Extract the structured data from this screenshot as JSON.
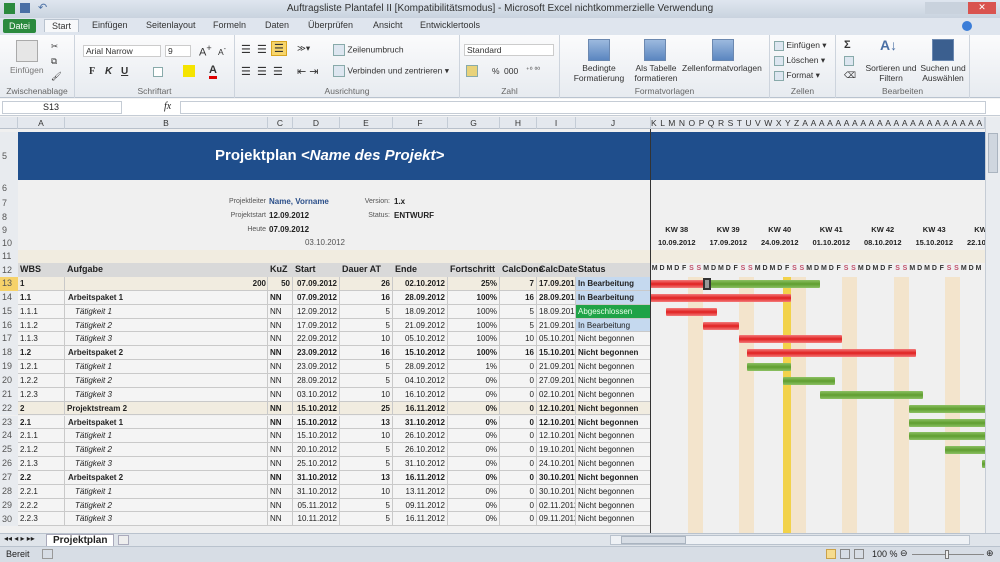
{
  "window": {
    "title": "Auftragsliste Plantafel II  [Kompatibilitätsmodus]  -  Microsoft Excel nichtkommerzielle Verwendung"
  },
  "tabs": [
    "Datei",
    "Start",
    "Einfügen",
    "Seitenlayout",
    "Formeln",
    "Daten",
    "Überprüfen",
    "Ansicht",
    "Entwicklertools"
  ],
  "ribbon": {
    "clipboard": {
      "paste": "Einfügen",
      "label": "Zwischenablage"
    },
    "font": {
      "name": "Arial Narrow",
      "size": "9",
      "bold": "F",
      "italic": "K",
      "underline": "U",
      "label": "Schriftart"
    },
    "alignment": {
      "wrap": "Zeilenumbruch",
      "merge": "Verbinden und zentrieren",
      "label": "Ausrichtung"
    },
    "number": {
      "format": "Standard",
      "percent": "%",
      "thousands": "000",
      "label": "Zahl"
    },
    "styles": {
      "conditional": "Bedingte Formatierung",
      "table": "Als Tabelle formatieren",
      "cellstyles": "Zellenformatvorlagen",
      "label": "Formatvorlagen"
    },
    "cells": {
      "insert": "Einfügen",
      "delete": "Löschen",
      "format": "Format",
      "label": "Zellen"
    },
    "editing": {
      "sum": "Σ",
      "sort": "Sortieren und Filtern",
      "find": "Suchen und Auswählen",
      "label": "Bearbeiten"
    }
  },
  "formula_bar": {
    "name_box": "S13",
    "fx": "fx",
    "value": ""
  },
  "columns": [
    "A",
    "B",
    "C",
    "D",
    "E",
    "F",
    "G",
    "H",
    "I",
    "J"
  ],
  "gantt_col_letters": "K L M N O P Q R S T U V W X Y Z A A A A A A A A A A A A A A A A A A A A A A A A A B B B B",
  "row_numbers": [
    "5",
    "6",
    "7",
    "8",
    "9",
    "10",
    "11",
    "12",
    "13",
    "14",
    "15",
    "16",
    "17",
    "18",
    "19",
    "20",
    "21",
    "22",
    "23",
    "24",
    "25",
    "26",
    "27",
    "28",
    "29",
    "30"
  ],
  "project": {
    "title": "Projektplan ",
    "title_name": "<Name des Projekt>",
    "leader_label": "Projektleiter",
    "leader": "Name, Vorname",
    "start_label": "Projektstart",
    "start": "12.09.2012",
    "today_label": "Heute",
    "today": "07.09.2012",
    "date": "03.10.2012",
    "version_label": "Version:",
    "version": "1.x",
    "status_label": "Status:",
    "status": "ENTWURF"
  },
  "headers": [
    "WBS",
    "Aufgabe",
    "KuZ",
    "Start",
    "Dauer AT",
    "Ende",
    "Fortschritt",
    "CalcDone",
    "CalcDate",
    "Status"
  ],
  "rows": [
    {
      "wbs": "1",
      "task": "",
      "kuz": "50",
      "extra": "200",
      "start": "07.09.2012",
      "dur": "26",
      "end": "02.10.2012",
      "prog": "25%",
      "done": "7",
      "cdate": "17.09.2012",
      "status": "In Bearbeitung",
      "level": 0
    },
    {
      "wbs": "1.1",
      "task": "Arbeitspaket 1",
      "kuz": "NN",
      "start": "07.09.2012",
      "dur": "16",
      "end": "28.09.2012",
      "prog": "100%",
      "done": "16",
      "cdate": "28.09.2012",
      "status": "In Bearbeitung",
      "level": 1
    },
    {
      "wbs": "1.1.1",
      "task": "Tätigkeit 1",
      "kuz": "NN",
      "start": "12.09.2012",
      "dur": "5",
      "end": "18.09.2012",
      "prog": "100%",
      "done": "5",
      "cdate": "18.09.2012",
      "status": "Abgeschlossen",
      "level": 2
    },
    {
      "wbs": "1.1.2",
      "task": "Tätigkeit 2",
      "kuz": "NN",
      "start": "17.09.2012",
      "dur": "5",
      "end": "21.09.2012",
      "prog": "100%",
      "done": "5",
      "cdate": "21.09.2012",
      "status": "In Bearbeitung",
      "level": 2
    },
    {
      "wbs": "1.1.3",
      "task": "Tätigkeit 3",
      "kuz": "NN",
      "start": "22.09.2012",
      "dur": "10",
      "end": "05.10.2012",
      "prog": "100%",
      "done": "10",
      "cdate": "05.10.2012",
      "status": "Nicht begonnen",
      "level": 2
    },
    {
      "wbs": "1.2",
      "task": "Arbeitspaket 2",
      "kuz": "NN",
      "start": "23.09.2012",
      "dur": "16",
      "end": "15.10.2012",
      "prog": "100%",
      "done": "16",
      "cdate": "15.10.2012",
      "status": "Nicht begonnen",
      "level": 1
    },
    {
      "wbs": "1.2.1",
      "task": "Tätigkeit 1",
      "kuz": "NN",
      "start": "23.09.2012",
      "dur": "5",
      "end": "28.09.2012",
      "prog": "1%",
      "done": "0",
      "cdate": "21.09.2012",
      "status": "Nicht begonnen",
      "level": 2
    },
    {
      "wbs": "1.2.2",
      "task": "Tätigkeit 2",
      "kuz": "NN",
      "start": "28.09.2012",
      "dur": "5",
      "end": "04.10.2012",
      "prog": "0%",
      "done": "0",
      "cdate": "27.09.2012",
      "status": "Nicht begonnen",
      "level": 2
    },
    {
      "wbs": "1.2.3",
      "task": "Tätigkeit 3",
      "kuz": "NN",
      "start": "03.10.2012",
      "dur": "10",
      "end": "16.10.2012",
      "prog": "0%",
      "done": "0",
      "cdate": "02.10.2012",
      "status": "Nicht begonnen",
      "level": 2
    },
    {
      "wbs": "2",
      "task": "Projektstream 2",
      "kuz": "NN",
      "start": "15.10.2012",
      "dur": "25",
      "end": "16.11.2012",
      "prog": "0%",
      "done": "0",
      "cdate": "12.10.2012",
      "status": "Nicht begonnen",
      "level": 0
    },
    {
      "wbs": "2.1",
      "task": "Arbeitspaket 1",
      "kuz": "NN",
      "start": "15.10.2012",
      "dur": "13",
      "end": "31.10.2012",
      "prog": "0%",
      "done": "0",
      "cdate": "12.10.2012",
      "status": "Nicht begonnen",
      "level": 1
    },
    {
      "wbs": "2.1.1",
      "task": "Tätigkeit 1",
      "kuz": "NN",
      "start": "15.10.2012",
      "dur": "10",
      "end": "26.10.2012",
      "prog": "0%",
      "done": "0",
      "cdate": "12.10.2012",
      "status": "Nicht begonnen",
      "level": 2
    },
    {
      "wbs": "2.1.2",
      "task": "Tätigkeit 2",
      "kuz": "NN",
      "start": "20.10.2012",
      "dur": "5",
      "end": "26.10.2012",
      "prog": "0%",
      "done": "0",
      "cdate": "19.10.2012",
      "status": "Nicht begonnen",
      "level": 2
    },
    {
      "wbs": "2.1.3",
      "task": "Tätigkeit 3",
      "kuz": "NN",
      "start": "25.10.2012",
      "dur": "5",
      "end": "31.10.2012",
      "prog": "0%",
      "done": "0",
      "cdate": "24.10.2012",
      "status": "Nicht begonnen",
      "level": 2
    },
    {
      "wbs": "2.2",
      "task": "Arbeitspaket 2",
      "kuz": "NN",
      "start": "31.10.2012",
      "dur": "13",
      "end": "16.11.2012",
      "prog": "0%",
      "done": "0",
      "cdate": "30.10.2012",
      "status": "Nicht begonnen",
      "level": 1
    },
    {
      "wbs": "2.2.1",
      "task": "Tätigkeit 1",
      "kuz": "NN",
      "start": "31.10.2012",
      "dur": "10",
      "end": "13.11.2012",
      "prog": "0%",
      "done": "0",
      "cdate": "30.10.2012",
      "status": "Nicht begonnen",
      "level": 2
    },
    {
      "wbs": "2.2.2",
      "task": "Tätigkeit 2",
      "kuz": "NN",
      "start": "05.11.2012",
      "dur": "5",
      "end": "09.11.2012",
      "prog": "0%",
      "done": "0",
      "cdate": "02.11.2012",
      "status": "Nicht begonnen",
      "level": 2
    },
    {
      "wbs": "2.2.3",
      "task": "Tätigkeit 3",
      "kuz": "NN",
      "start": "10.11.2012",
      "dur": "5",
      "end": "16.11.2012",
      "prog": "0%",
      "done": "0",
      "cdate": "09.11.2012",
      "status": "Nicht begonnen",
      "level": 2
    }
  ],
  "gantt": {
    "weeks": [
      {
        "kw": "KW 38",
        "date": "10.09.2012"
      },
      {
        "kw": "KW 39",
        "date": "17.09.2012"
      },
      {
        "kw": "KW 40",
        "date": "24.09.2012"
      },
      {
        "kw": "KW 41",
        "date": "01.10.2012"
      },
      {
        "kw": "KW 42",
        "date": "08.10.2012"
      },
      {
        "kw": "KW 43",
        "date": "15.10.2012"
      },
      {
        "kw": "KW 44",
        "date": "22.10.2012"
      }
    ],
    "day_letters": [
      "M",
      "D",
      "M",
      "D",
      "F",
      "S",
      "S"
    ],
    "highlight_date": "28.09.2012",
    "colors": {
      "done": "#e02020",
      "open": "#5f9e2f",
      "today": "#f2d24a",
      "weekend": "#f3e4cc",
      "header": "#1f4e8c",
      "closed": "#1fa347",
      "in_progress": "#c5d9ef"
    }
  },
  "sheet_tab": "Projektplan",
  "status_bar": {
    "ready": "Bereit",
    "zoom": "100 %"
  }
}
